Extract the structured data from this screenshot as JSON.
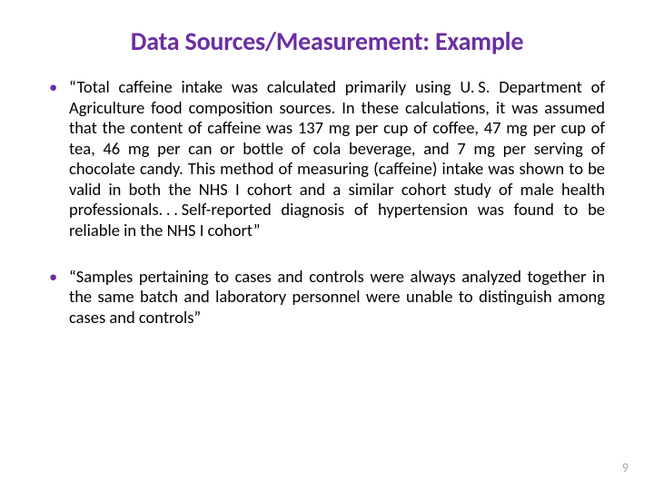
{
  "title": {
    "text": "Data Sources/Measurement: Example",
    "color": "#6b2fa0",
    "fontsize": 28
  },
  "body": {
    "color": "#000000",
    "fontsize": 18.5,
    "bullet_color": "#6b2fa0",
    "items": [
      "“Total caffeine intake was calculated primarily using U. S. Department of Agriculture food composition sources. In these calculations, it was assumed that the content of caffeine was 137 mg per cup of coffee, 47 mg per cup of tea, 46 mg per can or bottle of cola beverage, and 7 mg per serving of chocolate candy. This method of measuring (caffeine) intake was shown to be valid in both the NHS I cohort and a similar cohort study of male health professionals. . . Self-reported diagnosis of hypertension was found to be reliable in the NHS I cohort”",
      "“Samples pertaining to cases and controls were always analyzed together in the same batch and laboratory personnel were unable to distinguish among cases and controls”"
    ]
  },
  "page_number": {
    "text": "9",
    "color": "#a6a6a6",
    "fontsize": 14
  },
  "background_color": "#ffffff"
}
